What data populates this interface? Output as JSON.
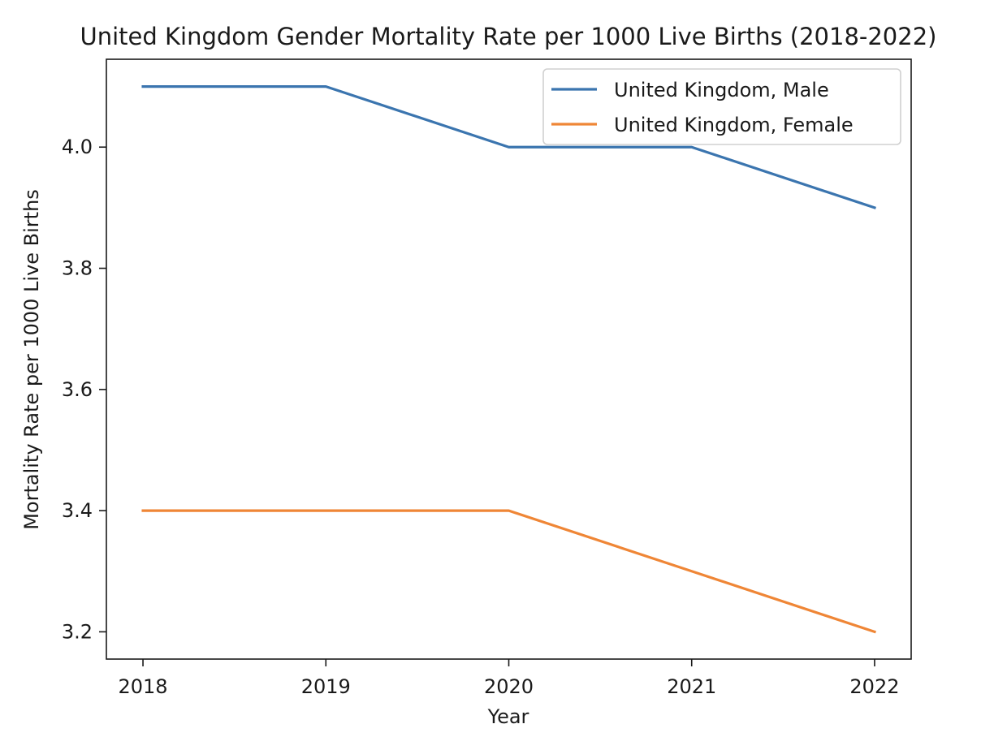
{
  "chart_data": {
    "type": "line",
    "title": "United Kingdom Gender Mortality Rate per 1000 Live Births (2018-2022)",
    "xlabel": "Year",
    "ylabel": "Mortality Rate per 1000 Live Births",
    "categories": [
      "2018",
      "2019",
      "2020",
      "2021",
      "2022"
    ],
    "x": [
      2018,
      2019,
      2020,
      2021,
      2022
    ],
    "xlim": [
      2017.8,
      2022.2
    ],
    "ylim": [
      3.155,
      4.145
    ],
    "yticks": [
      "3.2",
      "3.4",
      "3.6",
      "3.8",
      "4.0"
    ],
    "grid": false,
    "legend_position": "upper right",
    "series": [
      {
        "name": "United Kingdom, Male",
        "color": "#3b75af",
        "values": [
          4.1,
          4.1,
          4.0,
          4.0,
          3.9
        ]
      },
      {
        "name": "United Kingdom, Female",
        "color": "#ef8636",
        "values": [
          3.4,
          3.4,
          3.4,
          3.3,
          3.2
        ]
      }
    ]
  }
}
